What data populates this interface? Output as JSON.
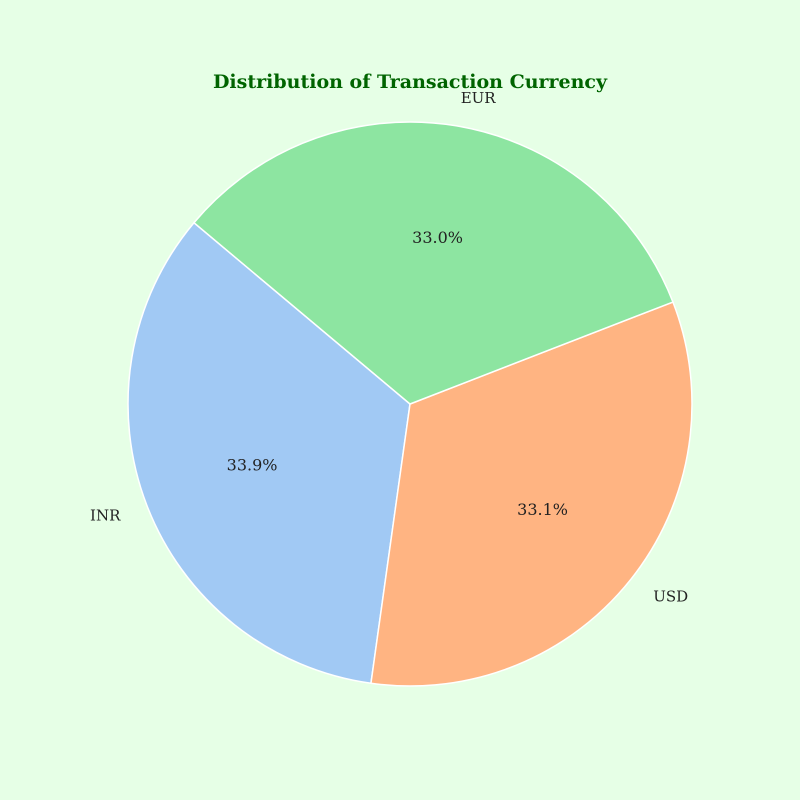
{
  "page": {
    "background": "#e6ffe6"
  },
  "chart_data": {
    "type": "pie",
    "title": "Distribution of Transaction Currency",
    "title_color": "#006400",
    "slice_border_color": "#ffffff",
    "start_angle_deg": 140,
    "slices": [
      {
        "label": "INR",
        "value": 33.9,
        "pct_label": "33.9%",
        "color": "#a1c9f4"
      },
      {
        "label": "USD",
        "value": 33.1,
        "pct_label": "33.1%",
        "color": "#ffb482"
      },
      {
        "label": "EUR",
        "value": 33.0,
        "pct_label": "33.0%",
        "color": "#8de5a1"
      }
    ]
  }
}
